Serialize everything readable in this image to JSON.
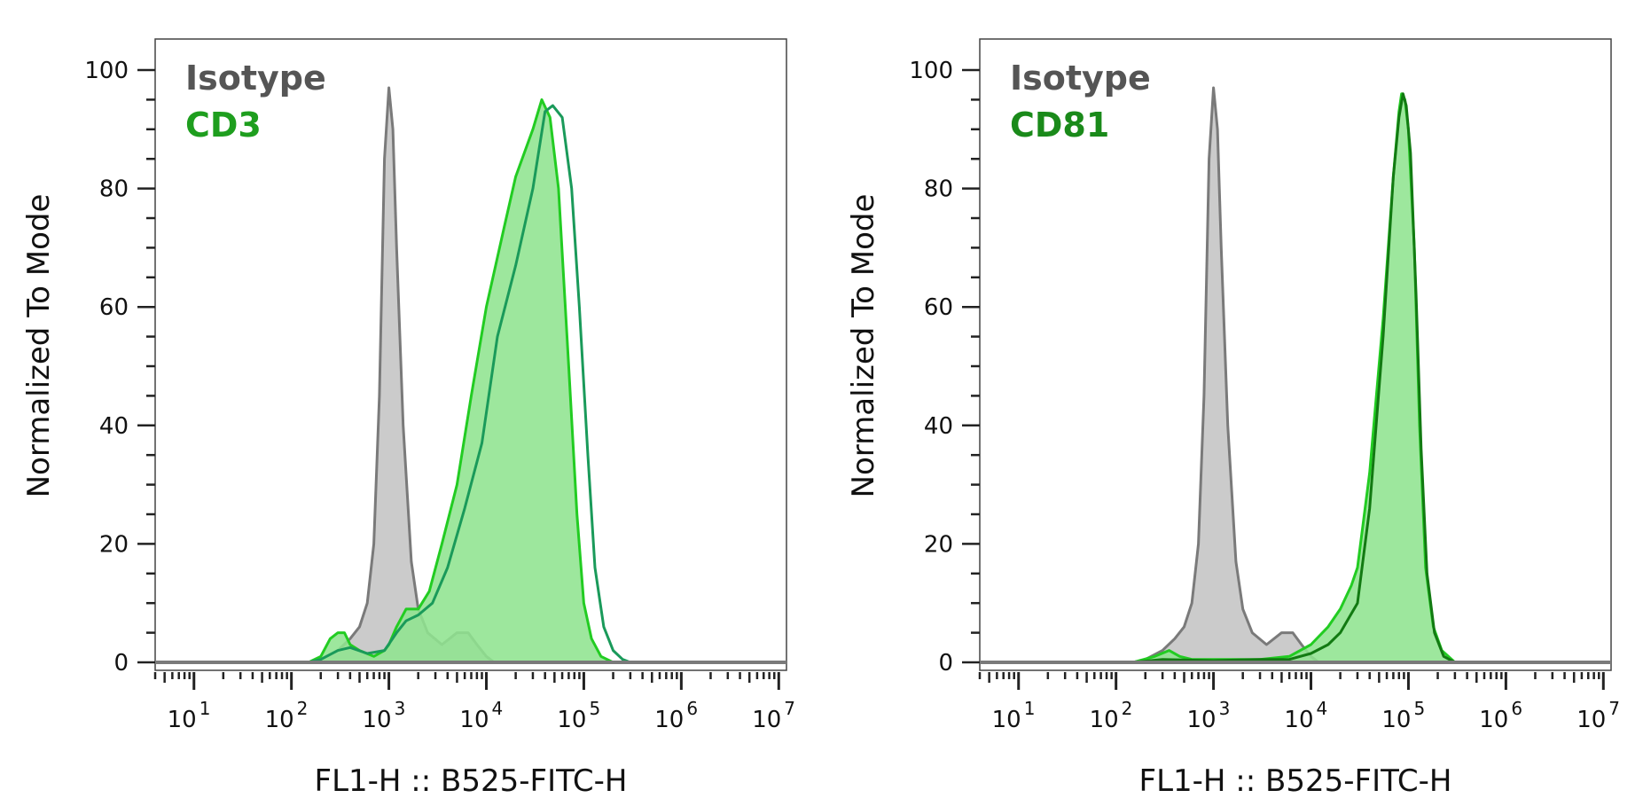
{
  "chart_data": [
    {
      "type": "area",
      "xscale": "log",
      "xlabel": "FL1-H :: B525-FITC-H",
      "ylabel": "Normalized To Mode",
      "xlim": [
        4,
        12000000
      ],
      "ylim": [
        0,
        105
      ],
      "yticks": [
        0,
        20,
        40,
        60,
        80,
        100
      ],
      "xticks": [
        {
          "base": "10",
          "exp": "1"
        },
        {
          "base": "10",
          "exp": "2"
        },
        {
          "base": "10",
          "exp": "3"
        },
        {
          "base": "10",
          "exp": "4"
        },
        {
          "base": "10",
          "exp": "5"
        },
        {
          "base": "10",
          "exp": "6"
        },
        {
          "base": "10",
          "exp": "7"
        }
      ],
      "grid": false,
      "legend_position": "top-left",
      "legend": [
        {
          "label": "Isotype",
          "color": "#555555"
        },
        {
          "label": "CD3",
          "color": "#1e9e1e"
        }
      ],
      "series": [
        {
          "name": "Isotype",
          "fill": "#c4c4c4",
          "stroke": "#7a7a7a",
          "points": [
            [
              150,
              0
            ],
            [
              200,
              0.5
            ],
            [
              300,
              2
            ],
            [
              400,
              4
            ],
            [
              500,
              6
            ],
            [
              600,
              10
            ],
            [
              700,
              20
            ],
            [
              800,
              45
            ],
            [
              900,
              85
            ],
            [
              1000,
              97
            ],
            [
              1100,
              90
            ],
            [
              1200,
              70
            ],
            [
              1400,
              40
            ],
            [
              1700,
              17
            ],
            [
              2000,
              9
            ],
            [
              2500,
              5
            ],
            [
              3500,
              3
            ],
            [
              5000,
              5
            ],
            [
              6500,
              5
            ],
            [
              8000,
              3
            ],
            [
              10000,
              1
            ],
            [
              12000,
              0
            ]
          ]
        },
        {
          "name": "CD3",
          "fill": "#8fe48f",
          "stroke": "#22cc22",
          "points": [
            [
              150,
              0
            ],
            [
              200,
              1
            ],
            [
              250,
              4
            ],
            [
              300,
              5
            ],
            [
              350,
              5
            ],
            [
              400,
              3
            ],
            [
              500,
              2
            ],
            [
              700,
              1
            ],
            [
              900,
              2
            ],
            [
              1000,
              3
            ],
            [
              1200,
              6
            ],
            [
              1500,
              9
            ],
            [
              2000,
              9
            ],
            [
              2600,
              12
            ],
            [
              3500,
              20
            ],
            [
              5000,
              30
            ],
            [
              7000,
              45
            ],
            [
              10000,
              60
            ],
            [
              15000,
              73
            ],
            [
              20000,
              82
            ],
            [
              30000,
              90
            ],
            [
              37000,
              95
            ],
            [
              45000,
              92
            ],
            [
              55000,
              80
            ],
            [
              70000,
              50
            ],
            [
              85000,
              25
            ],
            [
              100000,
              10
            ],
            [
              120000,
              4
            ],
            [
              150000,
              1
            ],
            [
              200000,
              0
            ]
          ]
        },
        {
          "name": "",
          "fill": "none",
          "stroke": "#1a9a5a",
          "points": [
            [
              150,
              0
            ],
            [
              200,
              0.5
            ],
            [
              300,
              2
            ],
            [
              400,
              2.5
            ],
            [
              600,
              1.5
            ],
            [
              900,
              2
            ],
            [
              1200,
              5
            ],
            [
              1500,
              7
            ],
            [
              2000,
              8
            ],
            [
              2800,
              10
            ],
            [
              4000,
              16
            ],
            [
              6000,
              26
            ],
            [
              9000,
              37
            ],
            [
              13000,
              55
            ],
            [
              20000,
              67
            ],
            [
              30000,
              80
            ],
            [
              40000,
              93
            ],
            [
              48000,
              94
            ],
            [
              60000,
              92
            ],
            [
              75000,
              80
            ],
            [
              90000,
              60
            ],
            [
              110000,
              35
            ],
            [
              130000,
              16
            ],
            [
              160000,
              6
            ],
            [
              200000,
              2
            ],
            [
              250000,
              0.5
            ],
            [
              300000,
              0
            ]
          ]
        }
      ]
    },
    {
      "type": "area",
      "xscale": "log",
      "xlabel": "FL1-H :: B525-FITC-H",
      "ylabel": "Normalized To Mode",
      "xlim": [
        4,
        12000000
      ],
      "ylim": [
        0,
        105
      ],
      "yticks": [
        0,
        20,
        40,
        60,
        80,
        100
      ],
      "xticks": [
        {
          "base": "10",
          "exp": "1"
        },
        {
          "base": "10",
          "exp": "2"
        },
        {
          "base": "10",
          "exp": "3"
        },
        {
          "base": "10",
          "exp": "4"
        },
        {
          "base": "10",
          "exp": "5"
        },
        {
          "base": "10",
          "exp": "6"
        },
        {
          "base": "10",
          "exp": "7"
        }
      ],
      "grid": false,
      "legend_position": "top-left",
      "legend": [
        {
          "label": "Isotype",
          "color": "#555555"
        },
        {
          "label": "CD81",
          "color": "#1a8a1a"
        }
      ],
      "series": [
        {
          "name": "Isotype",
          "fill": "#c4c4c4",
          "stroke": "#7a7a7a",
          "points": [
            [
              150,
              0
            ],
            [
              200,
              0.5
            ],
            [
              300,
              2
            ],
            [
              400,
              4
            ],
            [
              500,
              6
            ],
            [
              600,
              10
            ],
            [
              700,
              20
            ],
            [
              800,
              45
            ],
            [
              900,
              85
            ],
            [
              1000,
              97
            ],
            [
              1100,
              90
            ],
            [
              1200,
              70
            ],
            [
              1400,
              40
            ],
            [
              1700,
              17
            ],
            [
              2000,
              9
            ],
            [
              2500,
              5
            ],
            [
              3500,
              3
            ],
            [
              5000,
              5
            ],
            [
              6500,
              5
            ],
            [
              8000,
              3
            ],
            [
              10000,
              1
            ],
            [
              12000,
              0
            ]
          ]
        },
        {
          "name": "CD81",
          "fill": "#8fe48f",
          "stroke": "#22cc22",
          "points": [
            [
              150,
              0
            ],
            [
              250,
              1
            ],
            [
              350,
              2
            ],
            [
              450,
              1
            ],
            [
              600,
              0.5
            ],
            [
              1000,
              0.5
            ],
            [
              3000,
              0.5
            ],
            [
              6000,
              1
            ],
            [
              10000,
              3
            ],
            [
              15000,
              6
            ],
            [
              20000,
              9
            ],
            [
              26000,
              13
            ],
            [
              30000,
              16
            ],
            [
              40000,
              32
            ],
            [
              55000,
              58
            ],
            [
              70000,
              82
            ],
            [
              80000,
              93
            ],
            [
              85000,
              96
            ],
            [
              92000,
              95
            ],
            [
              100000,
              90
            ],
            [
              115000,
              70
            ],
            [
              130000,
              40
            ],
            [
              150000,
              16
            ],
            [
              180000,
              6
            ],
            [
              220000,
              2
            ],
            [
              300000,
              0
            ]
          ]
        },
        {
          "name": "",
          "fill": "none",
          "stroke": "#127a12",
          "points": [
            [
              150,
              0
            ],
            [
              300,
              0.5
            ],
            [
              1000,
              0.3
            ],
            [
              3000,
              0.5
            ],
            [
              6000,
              0.5
            ],
            [
              10000,
              1.5
            ],
            [
              15000,
              3
            ],
            [
              20000,
              5
            ],
            [
              30000,
              10
            ],
            [
              40000,
              26
            ],
            [
              55000,
              55
            ],
            [
              70000,
              82
            ],
            [
              80000,
              92
            ],
            [
              88000,
              96
            ],
            [
              95000,
              94
            ],
            [
              105000,
              86
            ],
            [
              120000,
              62
            ],
            [
              135000,
              36
            ],
            [
              155000,
              15
            ],
            [
              185000,
              5
            ],
            [
              230000,
              1
            ],
            [
              300000,
              0
            ]
          ]
        }
      ]
    }
  ]
}
